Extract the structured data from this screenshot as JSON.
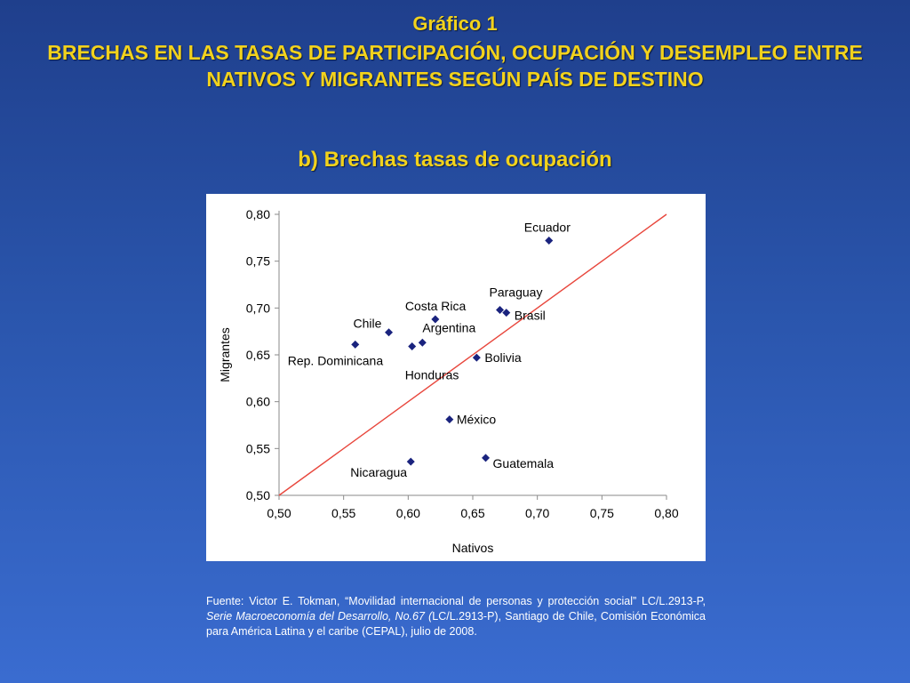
{
  "slide": {
    "label": "Gráfico 1",
    "title": "BRECHAS EN LAS TASAS DE PARTICIPACIÓN, OCUPACIÓN Y DESEMPLEO ENTRE NATIVOS Y MIGRANTES SEGÚN PAÍS DE DESTINO",
    "subtitle": "b) Brechas tasas de ocupación"
  },
  "colors": {
    "title": "#f2d21c",
    "marker": "#1a237e",
    "diagonal": "#e8463c"
  },
  "chart_data": {
    "type": "scatter",
    "xlabel": "Nativos",
    "ylabel": "Migrantes",
    "xlim": [
      0.5,
      0.8
    ],
    "ylim": [
      0.5,
      0.8
    ],
    "xticks": [
      "0,50",
      "0,55",
      "0,60",
      "0,65",
      "0,70",
      "0,75",
      "0,80"
    ],
    "yticks": [
      "0,50",
      "0,55",
      "0,60",
      "0,65",
      "0,70",
      "0,75",
      "0,80"
    ],
    "grid": false,
    "reference_line": {
      "from": [
        0.5,
        0.5
      ],
      "to": [
        0.8,
        0.8
      ]
    },
    "points": [
      {
        "label": "Ecuador",
        "x": 0.709,
        "y": 0.772
      },
      {
        "label": "Paraguay",
        "x": 0.671,
        "y": 0.698
      },
      {
        "label": "Brasil",
        "x": 0.676,
        "y": 0.695
      },
      {
        "label": "Costa Rica",
        "x": 0.621,
        "y": 0.688
      },
      {
        "label": "Chile",
        "x": 0.585,
        "y": 0.674
      },
      {
        "label": "Rep. Dominicana",
        "x": 0.559,
        "y": 0.661
      },
      {
        "label": "Argentina",
        "x": 0.611,
        "y": 0.663
      },
      {
        "label": "Honduras",
        "x": 0.603,
        "y": 0.659
      },
      {
        "label": "Bolivia",
        "x": 0.653,
        "y": 0.647
      },
      {
        "label": "México",
        "x": 0.632,
        "y": 0.581
      },
      {
        "label": "Guatemala",
        "x": 0.66,
        "y": 0.54
      },
      {
        "label": "Nicaragua",
        "x": 0.602,
        "y": 0.536
      }
    ]
  },
  "source": {
    "p1": "Fuente: Victor E. Tokman, “Movilidad internacional de personas y protección social” LC/L.2913-P, ",
    "p2": "Serie Macroeconomía del Desarrollo, No.67 (",
    "p3": "LC/L.2913-P), Santiago de Chile, Comisión Económica para América Latina y el caribe (CEPAL), julio de 2008."
  }
}
